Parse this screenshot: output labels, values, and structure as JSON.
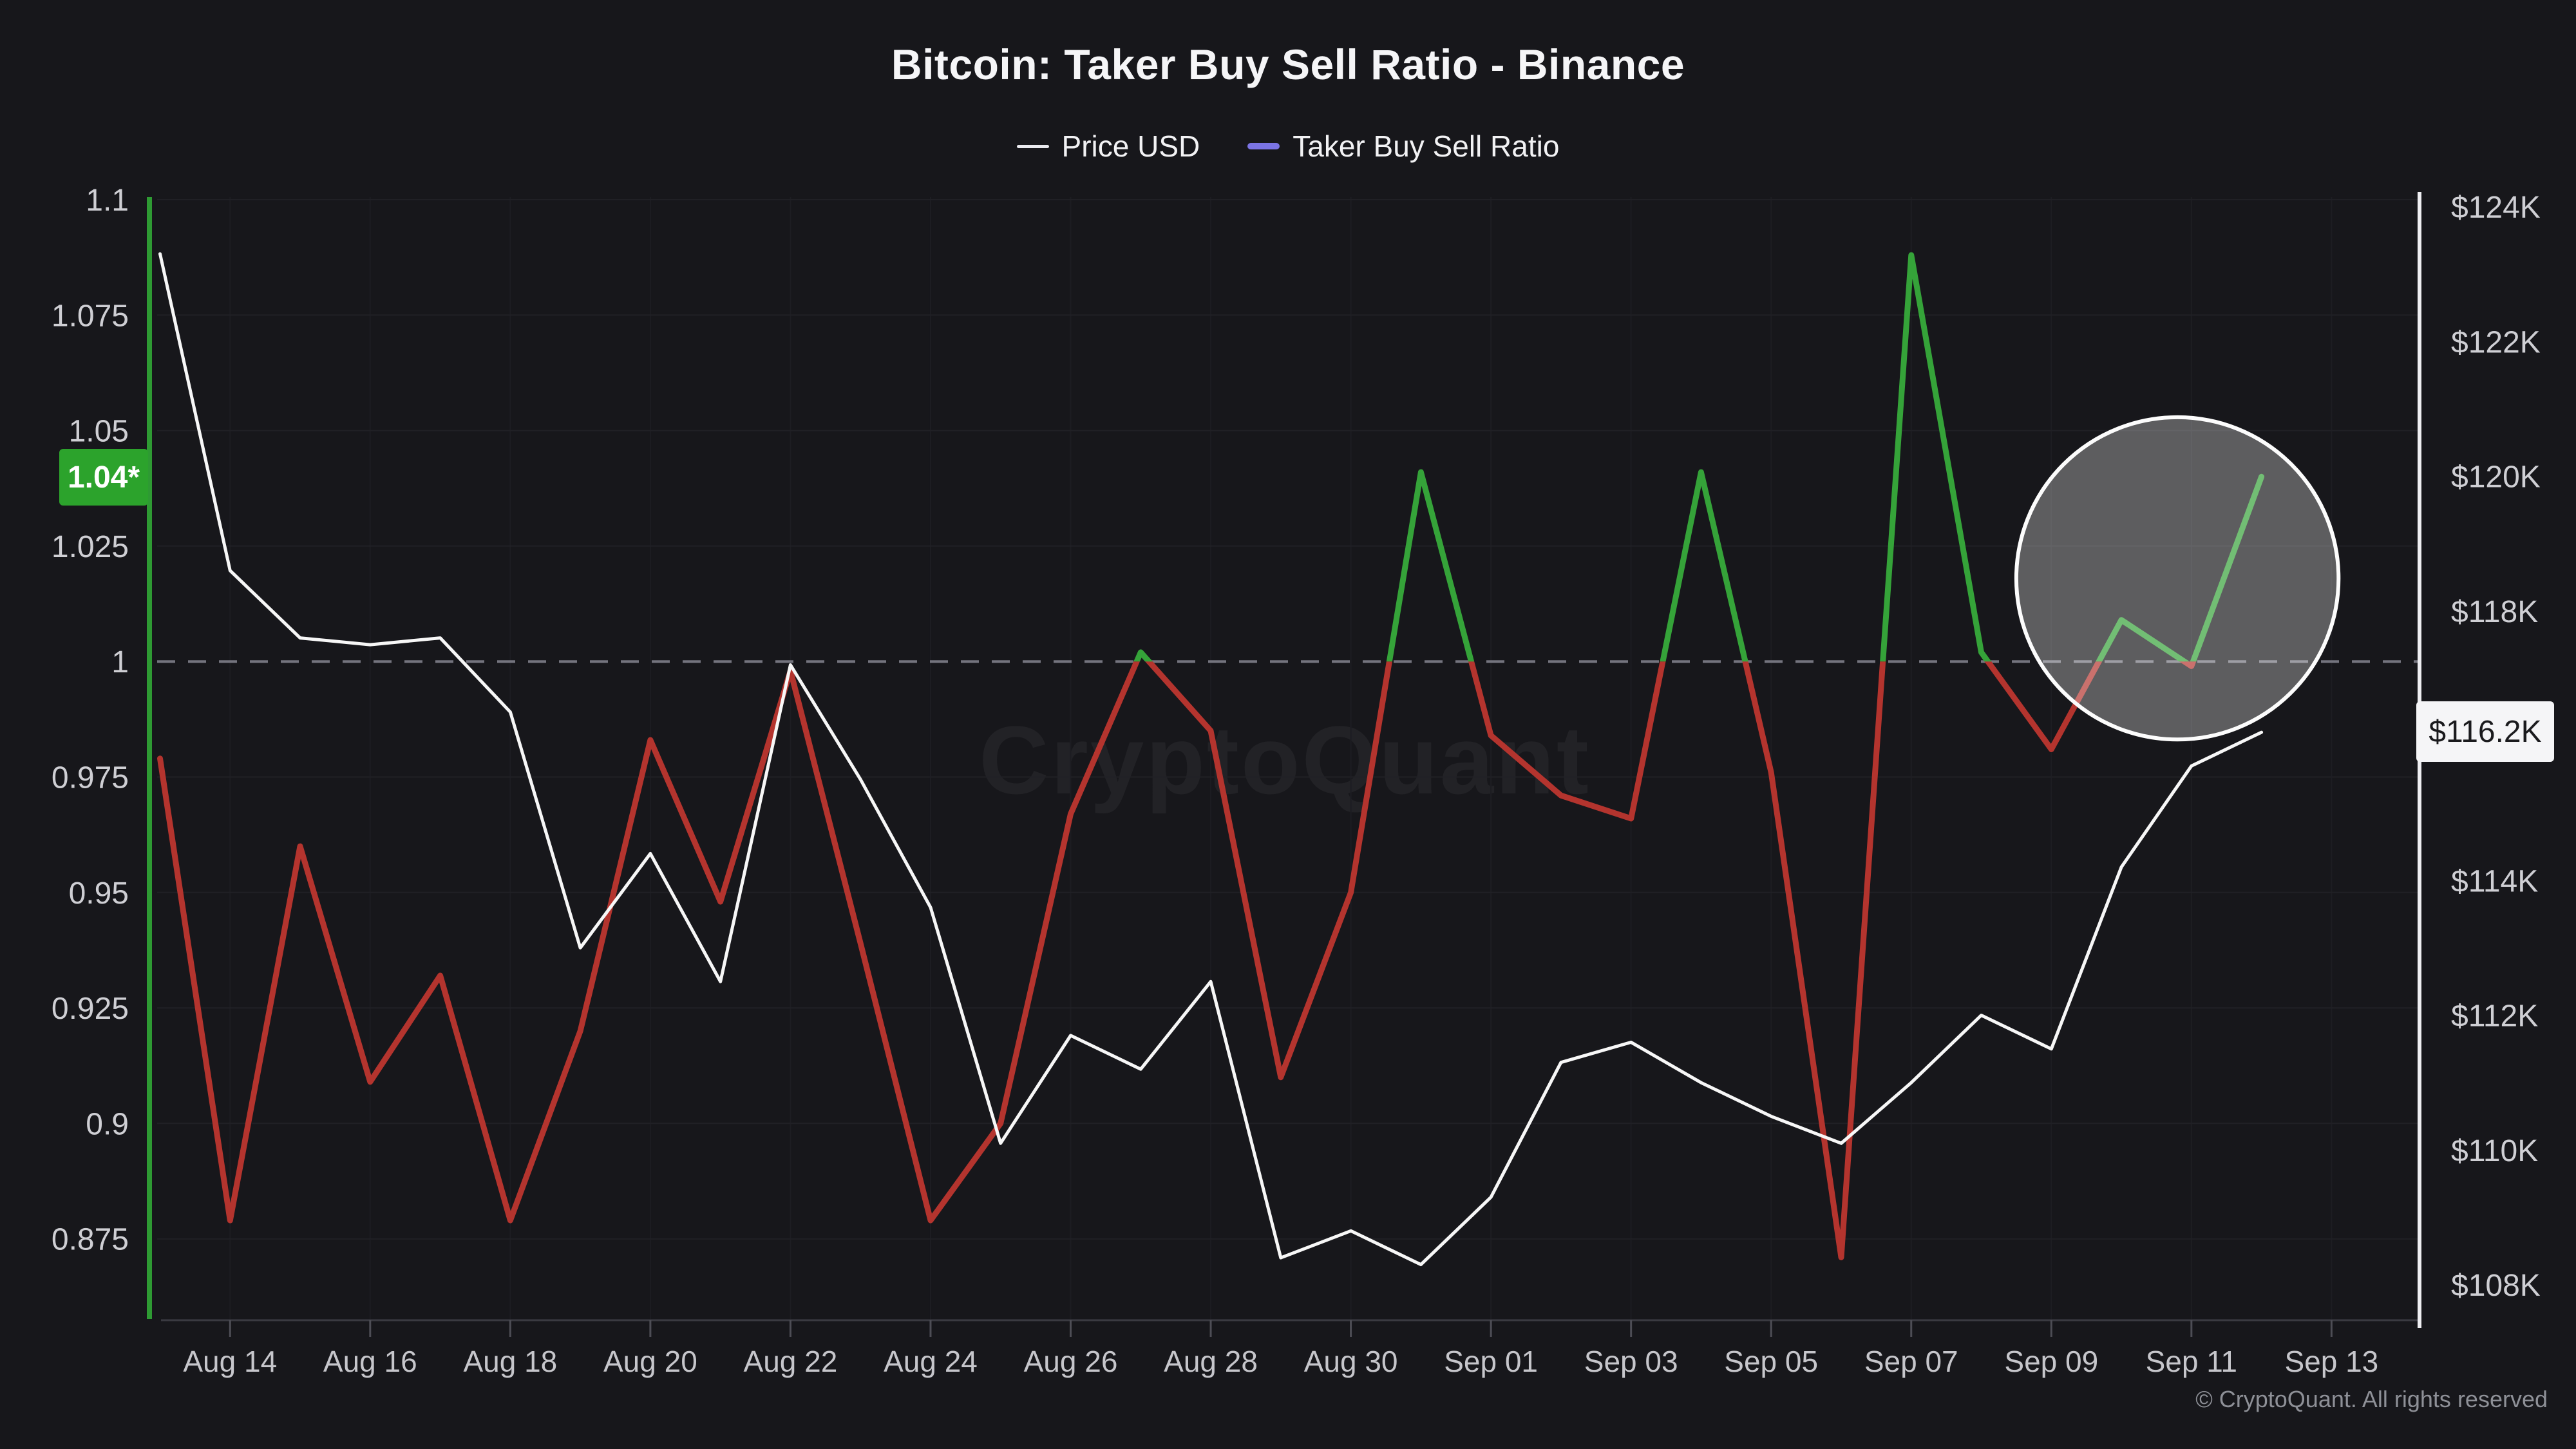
{
  "header": {
    "title": "Bitcoin: Taker Buy Sell Ratio - Binance",
    "legend": [
      {
        "label": "Price USD",
        "color": "#e9e9ee"
      },
      {
        "label": "Taker Buy Sell Ratio",
        "color": "#7b74e4"
      }
    ]
  },
  "watermark": "CryptoQuant",
  "footer": {
    "copyright": "© CryptoQuant. All rights reserved"
  },
  "colors": {
    "background": "#17171b",
    "grid_horizontal": "#202025",
    "grid_vertical": "#1d1d22",
    "bottom_axis_line": "#3a3a41",
    "x_tick_mark": "#4d4d55",
    "reference_dashed": "#74747e",
    "axis_left_line": "#2e9a33",
    "axis_right_line": "#eeeef2",
    "price_line": "#f7f7f7",
    "ratio_up": "#35a339",
    "ratio_down": "#b4342e",
    "tick_text": "#cfcfd4",
    "x_tick_text": "#c6c6cb",
    "badge_ratio_bg": "#2ca32c",
    "badge_ratio_text": "#ffffff",
    "badge_price_bg": "#f5f5f7",
    "badge_price_text": "#1a1a1d",
    "annotation_fill": "rgba(255,255,255,0.30)",
    "annotation_stroke": "#fcfcfc",
    "watermark_color": "rgba(255,255,255,0.05)"
  },
  "chart_data": {
    "type": "line",
    "title": "Bitcoin: Taker Buy Sell Ratio - Binance",
    "x": [
      "Aug 13",
      "Aug 14",
      "Aug 15",
      "Aug 16",
      "Aug 17",
      "Aug 18",
      "Aug 19",
      "Aug 20",
      "Aug 21",
      "Aug 22",
      "Aug 23",
      "Aug 24",
      "Aug 25",
      "Aug 26",
      "Aug 27",
      "Aug 28",
      "Aug 29",
      "Aug 30",
      "Aug 31",
      "Sep 01",
      "Sep 02",
      "Sep 03",
      "Sep 04",
      "Sep 05",
      "Sep 06",
      "Sep 07",
      "Sep 08",
      "Sep 09",
      "Sep 10",
      "Sep 11",
      "Sep 12"
    ],
    "series": [
      {
        "name": "Price USD",
        "axis": "right",
        "unit": "USD (K)",
        "values": [
          123.3,
          118.6,
          117.6,
          117.5,
          117.6,
          116.5,
          113.0,
          114.4,
          112.5,
          117.2,
          115.5,
          113.6,
          110.1,
          111.7,
          111.2,
          112.5,
          108.4,
          108.8,
          108.3,
          109.3,
          111.3,
          111.6,
          111.0,
          110.5,
          110.1,
          111.0,
          112.0,
          111.5,
          114.2,
          115.7,
          116.2
        ]
      },
      {
        "name": "Taker Buy Sell Ratio",
        "axis": "left",
        "threshold": 1.0,
        "values": [
          0.979,
          0.879,
          0.96,
          0.909,
          0.932,
          0.879,
          0.92,
          0.983,
          0.948,
          0.998,
          0.939,
          0.879,
          0.9,
          0.967,
          1.002,
          0.985,
          0.91,
          0.95,
          1.041,
          0.984,
          0.971,
          0.966,
          1.041,
          0.976,
          0.871,
          1.088,
          1.002,
          0.981,
          1.009,
          0.999,
          1.04
        ]
      }
    ],
    "left_axis": {
      "ticks": [
        "1.1",
        "1.075",
        "1.05",
        "1.025",
        "1",
        "0.975",
        "0.95",
        "0.925",
        "0.9",
        "0.875"
      ],
      "tick_values": [
        1.1,
        1.075,
        1.05,
        1.025,
        1,
        0.975,
        0.95,
        0.925,
        0.9,
        0.875
      ],
      "range": [
        0.857,
        1.1
      ],
      "current_label": "1.04*",
      "current_value": 1.04
    },
    "right_axis": {
      "ticks": [
        "$124K",
        "$122K",
        "$120K",
        "$118K",
        "$114K",
        "$112K",
        "$110K",
        "$108K"
      ],
      "tick_values": [
        124,
        122,
        120,
        118,
        114,
        112,
        110,
        108
      ],
      "range": [
        107.4,
        124.1
      ],
      "current_label": "$116.2K",
      "current_value": 116.2
    },
    "x_axis": {
      "tick_labels": [
        "Aug 14",
        "Aug 16",
        "Aug 18",
        "Aug 20",
        "Aug 22",
        "Aug 24",
        "Aug 26",
        "Aug 28",
        "Aug 30",
        "Sep 01",
        "Sep 03",
        "Sep 05",
        "Sep 07",
        "Sep 09",
        "Sep 11",
        "Sep 13"
      ],
      "tick_day_indices": [
        1,
        3,
        5,
        7,
        9,
        11,
        13,
        15,
        17,
        19,
        21,
        23,
        25,
        27,
        29,
        31
      ]
    },
    "reference_line": 1.0,
    "annotation_circle": {
      "center_date": "Sep 10/11",
      "center_ratio": 1.018,
      "radius_days": 2.3
    },
    "grid": "horizontal faint + vertical faint at labeled dates",
    "legend_position": "top-center"
  }
}
